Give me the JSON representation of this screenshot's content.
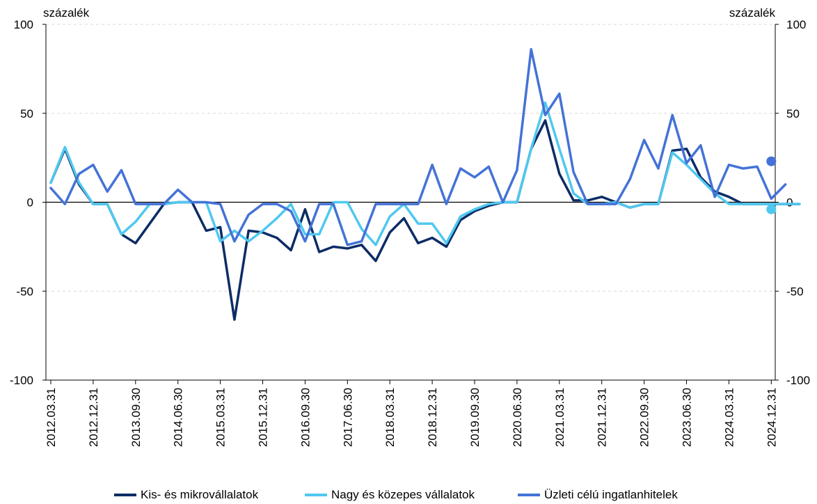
{
  "chart_data": {
    "type": "line",
    "y_unit_left": "százalék",
    "y_unit_right": "százalék",
    "ylim": [
      -100,
      100
    ],
    "yticks": [
      100,
      50,
      0,
      -50,
      -100
    ],
    "y_gridlines": "dashed",
    "x_tick_labels": [
      "2012.03.31",
      "2012.12.31",
      "2013.09.30",
      "2014.06.30",
      "2015.03.31",
      "2015.12.31",
      "2016.09.30",
      "2017.06.30",
      "2018.03.31",
      "2018.12.31",
      "2019.09.30",
      "2020.06.30",
      "2021.03.31",
      "2021.12.31",
      "2022.09.30",
      "2023.06.30",
      "2024.03.31",
      "2024.12.31"
    ],
    "series": [
      {
        "name": "Kis- és mikrovállalatok",
        "color": "#0c2c65",
        "values": [
          11,
          30,
          10,
          -1,
          -1,
          -18,
          -23,
          -12,
          -1,
          0,
          0,
          -16,
          -14,
          -66,
          -16,
          -17,
          -20,
          -27,
          -4,
          -28,
          -25,
          -26,
          -24,
          -33,
          -17,
          -9,
          -23,
          -20,
          -25,
          -10,
          -5,
          -2,
          0,
          0,
          30,
          46,
          16,
          1,
          1,
          3,
          0,
          -3,
          -1,
          -1,
          29,
          30,
          14,
          6,
          3,
          -1,
          -1,
          -1,
          -1,
          -1
        ]
      },
      {
        "name": "Nagy és közepes vállalatok",
        "color": "#4fc8f0",
        "values": [
          11,
          31,
          11,
          -1,
          -1,
          -18,
          -11,
          -1,
          -1,
          0,
          0,
          0,
          -22,
          -16,
          -22,
          -16,
          -9,
          -1,
          -18,
          -18,
          0,
          0,
          -15,
          -24,
          -8,
          -1,
          -12,
          -12,
          -23,
          -8,
          -4,
          -1,
          0,
          0,
          30,
          56,
          30,
          5,
          -1,
          -1,
          0,
          -3,
          -1,
          -1,
          28,
          21,
          13,
          5,
          -1,
          -1,
          -1,
          -1,
          -1,
          -1
        ]
      },
      {
        "name": "Üzleti célú ingatlanhitelek",
        "color": "#4472d6",
        "values": [
          8,
          -1,
          16,
          21,
          6,
          18,
          -1,
          -1,
          -1,
          7,
          0,
          0,
          -1,
          -22,
          -7,
          -1,
          -1,
          -5,
          -22,
          -1,
          -1,
          -24,
          -22,
          -1,
          -1,
          -1,
          -1,
          21,
          -1,
          19,
          14,
          20,
          0,
          18,
          86,
          49,
          61,
          17,
          -1,
          -1,
          -1,
          13,
          35,
          19,
          49,
          22,
          32,
          3,
          21,
          19,
          20,
          2,
          10
        ]
      }
    ],
    "markers": [
      {
        "series": "Üzleti célú ingatlanhitelek",
        "x": "2024.12.31",
        "y": 23,
        "axis": "right"
      },
      {
        "series": "Nagy és közepes vállalatok",
        "x": "2024.12.31",
        "y": -4,
        "axis": "right"
      }
    ],
    "legend_placement": "bottom"
  },
  "legend": [
    {
      "label": "Kis- és mikrovállalatok",
      "color": "#0c2c65"
    },
    {
      "label": "Nagy és közepes vállalatok",
      "color": "#4fc8f0"
    },
    {
      "label": "Üzleti célú ingatlanhitelek",
      "color": "#4472d6"
    }
  ]
}
